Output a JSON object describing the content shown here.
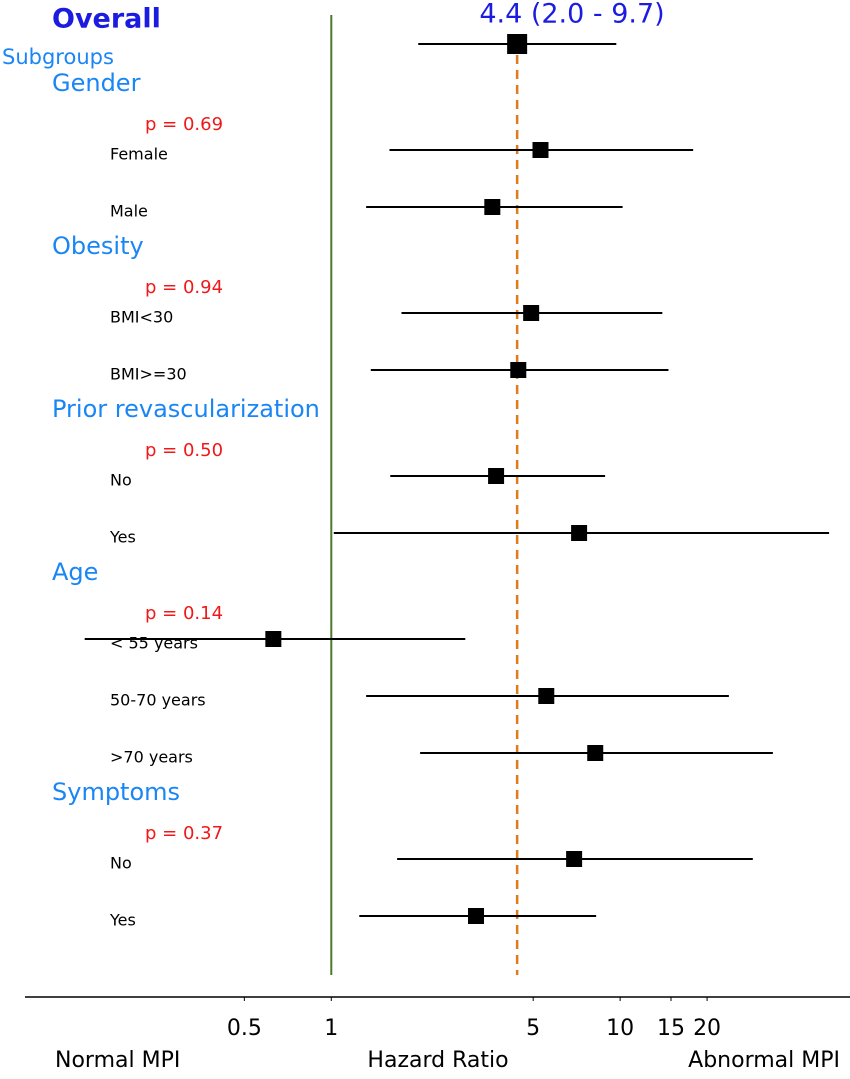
{
  "chart_data": {
    "type": "forest",
    "title": "Overall",
    "title_color": "#1c1ce0",
    "overall_label": "4.4 (2.0 - 9.7)",
    "overall": {
      "estimate": 4.4,
      "lower": 2.0,
      "upper": 9.7
    },
    "subgroups_label": "Subgroups",
    "group_color": "#1a86f5",
    "p_color": "#f01818",
    "mark_color": "#000000",
    "reference_value": 1,
    "reference_color": "#4d7a2a",
    "overall_line_color": "#e07b1a",
    "xscale": "log",
    "xlim": [
      0.087,
      62.5
    ],
    "xticks": [
      0.5,
      1,
      5,
      10,
      15,
      20
    ],
    "xlabel": "Hazard Ratio",
    "left_label": "Normal MPI",
    "right_label": "Abnormal MPI",
    "groups": [
      {
        "name": "Gender",
        "p_label": "p = 0.69",
        "rows": [
          {
            "label": "Female",
            "estimate": 5.3,
            "lower": 1.59,
            "upper": 17.9
          },
          {
            "label": "Male",
            "estimate": 3.61,
            "lower": 1.32,
            "upper": 10.2
          }
        ]
      },
      {
        "name": "Obesity",
        "p_label": "p = 0.94",
        "rows": [
          {
            "label": "BMI<30",
            "estimate": 4.92,
            "lower": 1.75,
            "upper": 14.0
          },
          {
            "label": "BMI>=30",
            "estimate": 4.44,
            "lower": 1.37,
            "upper": 14.7
          }
        ]
      },
      {
        "name": "Prior revascularization",
        "p_label": "p = 0.50",
        "rows": [
          {
            "label": "No",
            "estimate": 3.72,
            "lower": 1.6,
            "upper": 8.87
          },
          {
            "label": "Yes",
            "estimate": 7.21,
            "lower": 1.02,
            "upper": 52.9
          }
        ]
      },
      {
        "name": "Age",
        "p_label": "p = 0.14",
        "rows": [
          {
            "label": "< 55 years",
            "estimate": 0.63,
            "lower": 0.14,
            "upper": 2.91
          },
          {
            "label": "50-70 years",
            "estimate": 5.55,
            "lower": 1.32,
            "upper": 23.8
          },
          {
            "label": ">70 years",
            "estimate": 8.2,
            "lower": 2.03,
            "upper": 33.8
          }
        ]
      },
      {
        "name": "Symptoms",
        "p_label": "p = 0.37",
        "rows": [
          {
            "label": "No",
            "estimate": 6.93,
            "lower": 1.69,
            "upper": 28.8
          },
          {
            "label": "Yes",
            "estimate": 3.17,
            "lower": 1.25,
            "upper": 8.26
          }
        ]
      }
    ]
  }
}
